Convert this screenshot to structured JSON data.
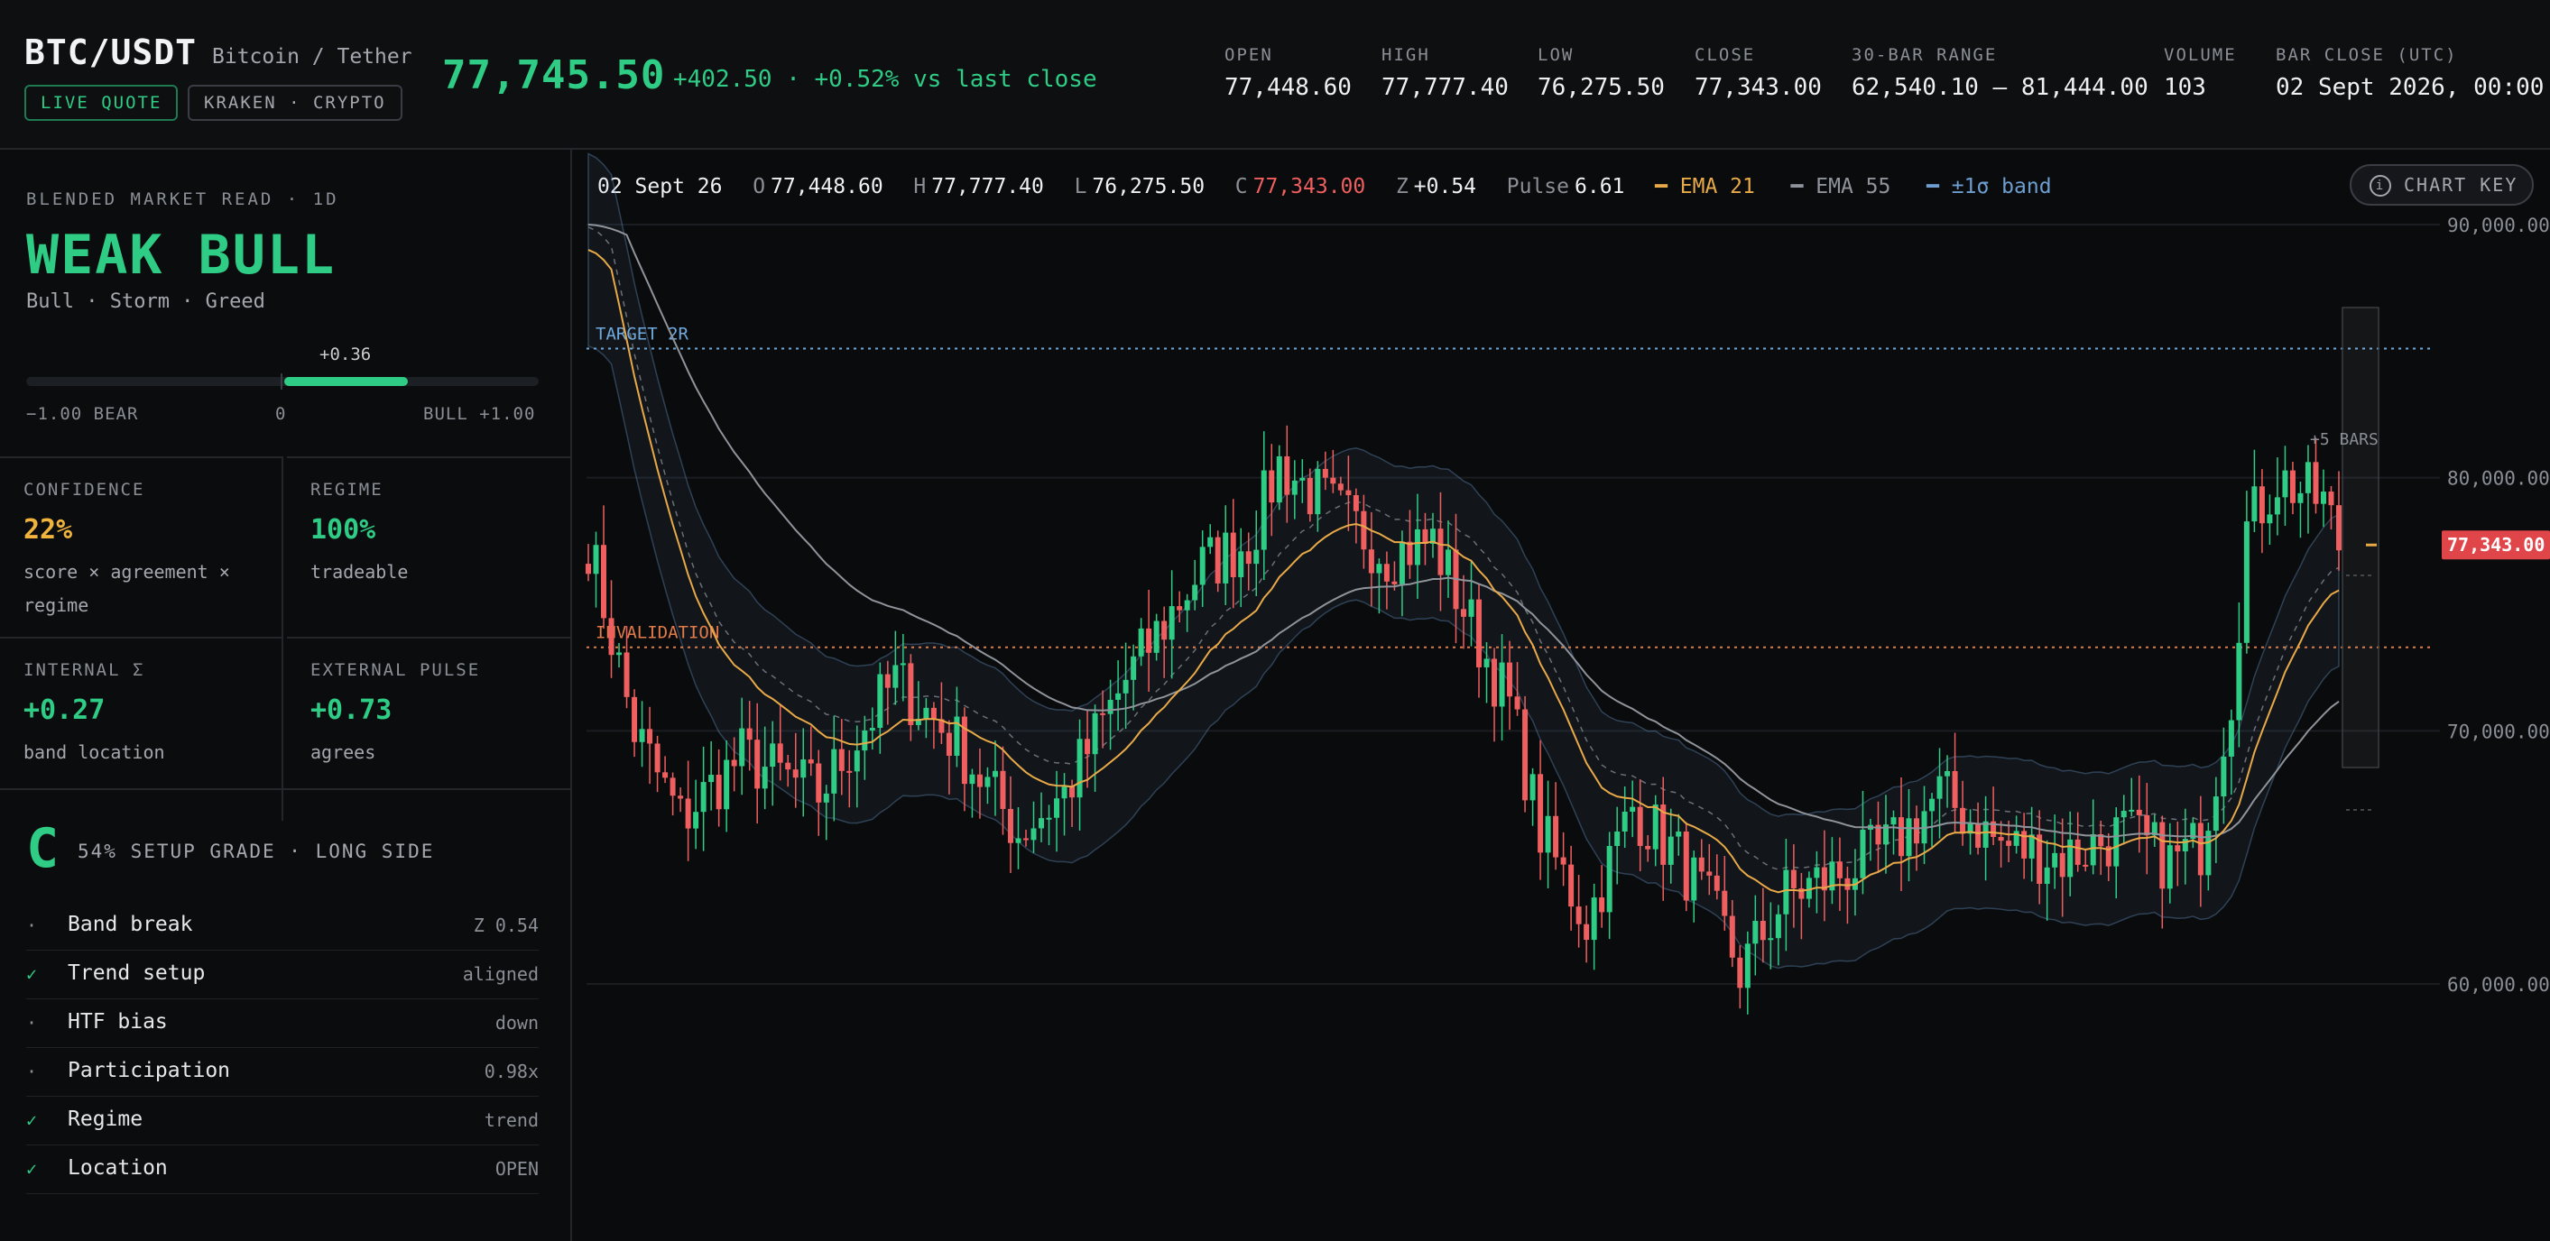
{
  "header": {
    "pair": "BTC/USDT",
    "pair_name": "Bitcoin / Tether",
    "live_tag": "LIVE QUOTE",
    "exchange_tag": "KRAKEN · CRYPTO",
    "price": "77,745.50",
    "change": "+402.50 · +0.52% vs last close",
    "stats": [
      {
        "label": "OPEN",
        "value": "77,448.60"
      },
      {
        "label": "HIGH",
        "value": "77,777.40"
      },
      {
        "label": "LOW",
        "value": "76,275.50"
      },
      {
        "label": "CLOSE",
        "value": "77,343.00"
      },
      {
        "label": "30-BAR RANGE",
        "value": "62,540.10 – 81,444.00"
      },
      {
        "label": "VOLUME",
        "value": "103"
      },
      {
        "label": "BAR CLOSE (UTC)",
        "value": "02 Sept 2026, 00:00"
      }
    ]
  },
  "panel": {
    "read_label": "BLENDED MARKET READ · 1D",
    "read_value": "WEAK BULL",
    "read_sub": "Bull · Storm · Greed",
    "gauge": {
      "score_label": "+0.36",
      "score": 0.36,
      "left_label": "−1.00 BEAR",
      "mid_label": "0",
      "right_label": "BULL +1.00"
    },
    "cells": [
      {
        "label": "CONFIDENCE",
        "value": "22%",
        "sub": "score × agreement × regime",
        "color": "#f0b43c"
      },
      {
        "label": "REGIME",
        "value": "100%",
        "sub": "tradeable",
        "color": "#2ecc85"
      },
      {
        "label": "INTERNAL Σ",
        "value": "+0.27",
        "sub": "band location",
        "color": "#2ecc85"
      },
      {
        "label": "EXTERNAL PULSE",
        "value": "+0.73",
        "sub": "agrees",
        "color": "#2ecc85"
      }
    ],
    "grade": {
      "letter": "C",
      "desc": "54% SETUP GRADE · LONG SIDE"
    },
    "checks": [
      {
        "mark": "·",
        "name": "Band break",
        "value": "Z 0.54",
        "ok": false
      },
      {
        "mark": "✓",
        "name": "Trend setup",
        "value": "aligned",
        "ok": true
      },
      {
        "mark": "·",
        "name": "HTF bias",
        "value": "down",
        "ok": false
      },
      {
        "mark": "·",
        "name": "Participation",
        "value": "0.98x",
        "ok": false
      },
      {
        "mark": "✓",
        "name": "Regime",
        "value": "trend",
        "ok": true
      },
      {
        "mark": "✓",
        "name": "Location",
        "value": "OPEN",
        "ok": true
      }
    ]
  },
  "chart_legend": {
    "date": "02 Sept 26",
    "o_label": "O",
    "o": "77,448.60",
    "h_label": "H",
    "h": "77,777.40",
    "l_label": "L",
    "l": "76,275.50",
    "c_label": "C",
    "c": "77,343.00",
    "z_label": "Z",
    "z": "+0.54",
    "pulse_label": "Pulse",
    "pulse": "6.61",
    "ema21": "EMA 21",
    "ema55": "EMA 55",
    "band": "±1σ band"
  },
  "chart_key": "CHART KEY",
  "chart_data": {
    "type": "candlestick",
    "y_ticks": [
      "90,000.00",
      "80,000.00",
      "70,000.00",
      "60,000.00"
    ],
    "y_tick_values": [
      90000,
      80000,
      70000,
      60000
    ],
    "ylim": [
      57000,
      95000
    ],
    "target_label": "TARGET 2R",
    "target_value": 85100,
    "invalidation_label": "INVALIDATION",
    "invalidation_value": 73300,
    "last_price_label": "77,343.00",
    "last_price": 77343,
    "future_label": "+5 BARS",
    "colors": {
      "up": "#2ecc85",
      "down": "#ef5f5f",
      "ema21": "#e8a948",
      "ema55": "#8f949b",
      "band": "#6e9ed0",
      "target": "#6fa8dc",
      "invalidation": "#e07b4a"
    }
  }
}
